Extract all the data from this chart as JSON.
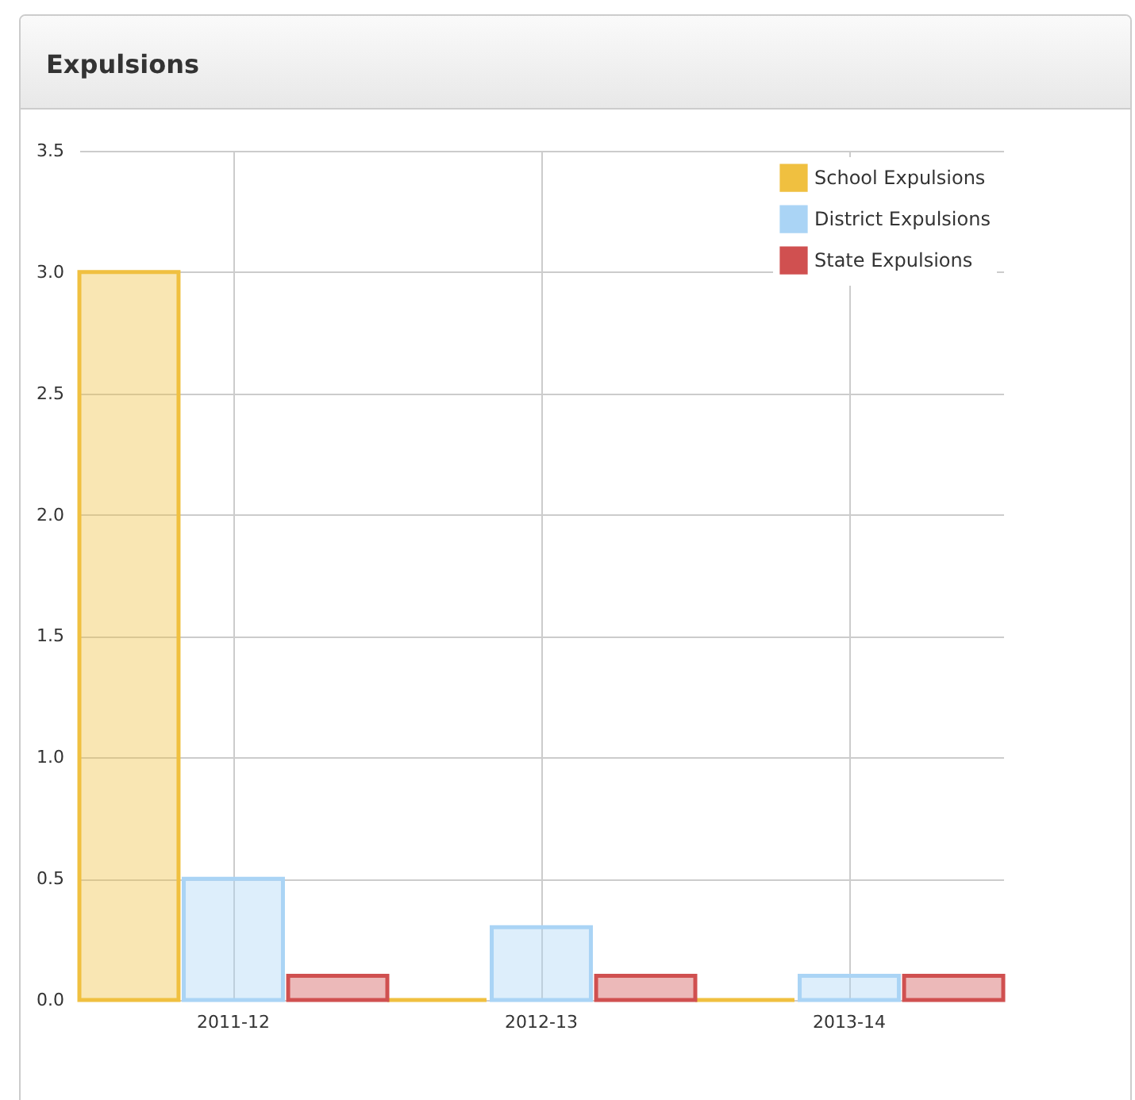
{
  "chart_data": {
    "type": "bar",
    "title": "Expulsions",
    "categories": [
      "2011-12",
      "2012-13",
      "2013-14"
    ],
    "series": [
      {
        "name": "School Expulsions",
        "color": "#f0c040",
        "values": [
          3.0,
          0,
          0
        ]
      },
      {
        "name": "District Expulsions",
        "color": "#aad4f5",
        "values": [
          0.5,
          0.3,
          0.1
        ]
      },
      {
        "name": "State Expulsions",
        "color": "#d05050",
        "values": [
          0.1,
          0.1,
          0.1
        ]
      }
    ],
    "ylim": [
      0,
      3.5
    ],
    "yticks": [
      {
        "value": 0,
        "label": "0.0"
      },
      0.5,
      {
        "value": 1,
        "label": "1.0"
      },
      1.5,
      {
        "value": 2,
        "label": "2.0"
      },
      2.5,
      {
        "value": 3,
        "label": "3.0"
      },
      3.5
    ],
    "grid": true,
    "legend": "top right"
  }
}
